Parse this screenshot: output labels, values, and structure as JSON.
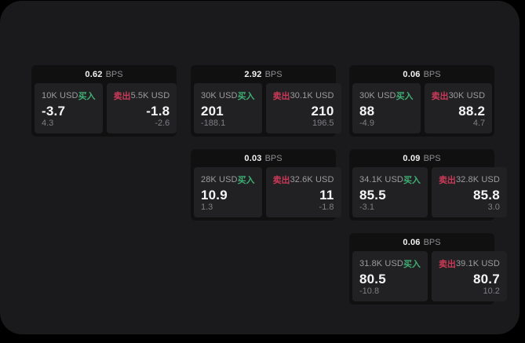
{
  "colors": {
    "page_bg": "#000000",
    "surface_bg": "#1a1a1c",
    "card_bg": "#101011",
    "tile_bg": "#212123",
    "buy_green": "#3fae73",
    "sell_red": "#ca3a58",
    "value_white": "#f5f5f5",
    "label_gray": "#9c9c9f",
    "sub_gray": "#7f7f83"
  },
  "labels": {
    "buy": "买入",
    "sell": "卖出",
    "bps_unit": "BPS"
  },
  "cards": [
    {
      "bps_value": "0.62",
      "bps_unit": "BPS",
      "buy": {
        "amount": "10K USD",
        "side_label": "买入",
        "value": "-3.7",
        "sub_value": "4.3"
      },
      "sell": {
        "amount": "5.5K USD",
        "side_label": "卖出",
        "value": "-1.8",
        "sub_value": "-2.6"
      }
    },
    {
      "bps_value": "2.92",
      "bps_unit": "BPS",
      "buy": {
        "amount": "30K USD",
        "side_label": "买入",
        "value": "201",
        "sub_value": "-188.1"
      },
      "sell": {
        "amount": "30.1K USD",
        "side_label": "卖出",
        "value": "210",
        "sub_value": "196.5"
      }
    },
    {
      "bps_value": "0.06",
      "bps_unit": "BPS",
      "buy": {
        "amount": "30K USD",
        "side_label": "买入",
        "value": "88",
        "sub_value": "-4.9"
      },
      "sell": {
        "amount": "30K USD",
        "side_label": "卖出",
        "value": "88.2",
        "sub_value": "4.7"
      }
    },
    {
      "bps_value": "0.03",
      "bps_unit": "BPS",
      "buy": {
        "amount": "28K USD",
        "side_label": "买入",
        "value": "10.9",
        "sub_value": "1.3"
      },
      "sell": {
        "amount": "32.6K USD",
        "side_label": "卖出",
        "value": "11",
        "sub_value": "-1.8"
      }
    },
    {
      "bps_value": "0.09",
      "bps_unit": "BPS",
      "buy": {
        "amount": "34.1K USD",
        "side_label": "买入",
        "value": "85.5",
        "sub_value": "-3.1"
      },
      "sell": {
        "amount": "32.8K USD",
        "side_label": "卖出",
        "value": "85.8",
        "sub_value": "3.0"
      }
    },
    {
      "bps_value": "0.06",
      "bps_unit": "BPS",
      "buy": {
        "amount": "31.8K USD",
        "side_label": "买入",
        "value": "80.5",
        "sub_value": "-10.8"
      },
      "sell": {
        "amount": "39.1K USD",
        "side_label": "卖出",
        "value": "80.7",
        "sub_value": "10.2"
      }
    }
  ]
}
